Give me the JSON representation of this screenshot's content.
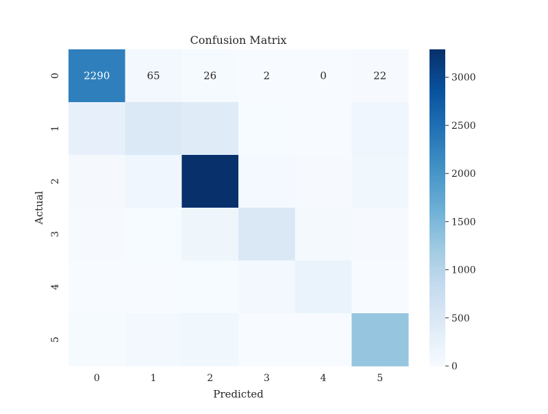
{
  "chart_data": {
    "type": "heatmap",
    "title": "Confusion Matrix",
    "xlabel": "Predicted",
    "ylabel": "Actual",
    "x_categories": [
      "0",
      "1",
      "2",
      "3",
      "4",
      "5"
    ],
    "y_categories": [
      "0",
      "1",
      "2",
      "3",
      "4",
      "5"
    ],
    "values": [
      [
        2290,
        65,
        26,
        2,
        0,
        22
      ],
      [
        270,
        470,
        400,
        10,
        5,
        120
      ],
      [
        40,
        120,
        3290,
        60,
        15,
        110
      ],
      [
        20,
        10,
        140,
        480,
        50,
        15
      ],
      [
        5,
        5,
        10,
        70,
        210,
        5
      ],
      [
        25,
        85,
        110,
        5,
        5,
        1300
      ]
    ],
    "annotated_row": 0,
    "color_range": [
      0,
      3290
    ],
    "colormap": "Blues",
    "colorbar": {
      "ticks": [
        0,
        500,
        1000,
        1500,
        2000,
        2500,
        3000
      ]
    }
  }
}
